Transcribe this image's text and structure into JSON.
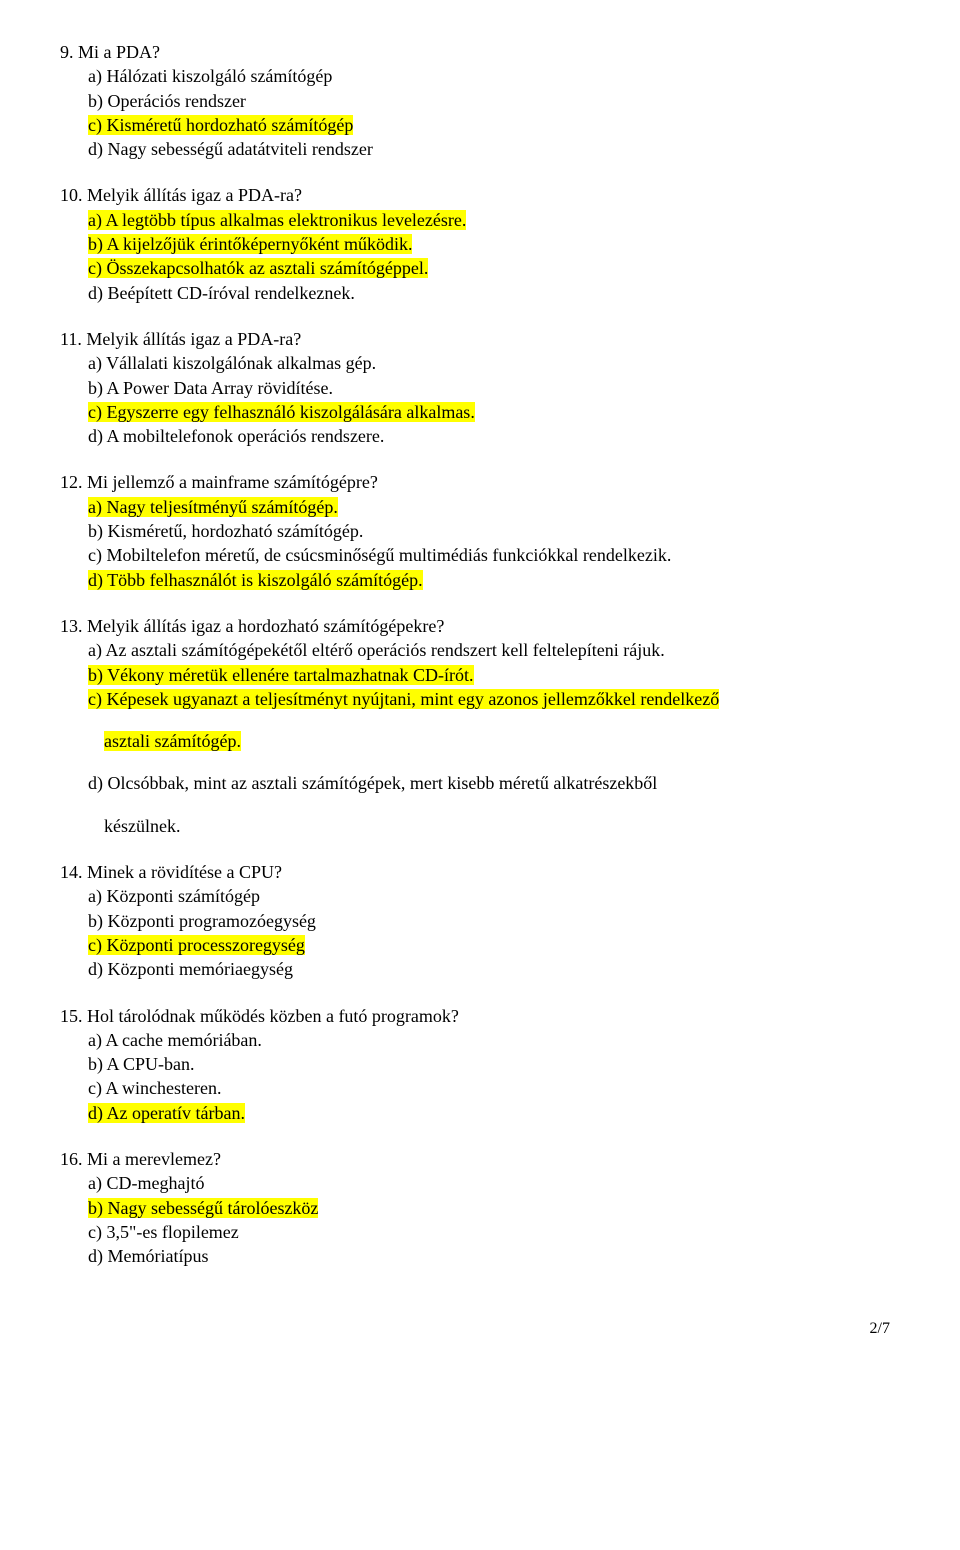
{
  "q9": {
    "stem": "9. Mi a PDA?",
    "a": "a) Hálózati kiszolgáló számítógép",
    "b": "b) Operációs rendszer",
    "c": "c) Kisméretű hordozható számítógép",
    "d": "d) Nagy sebességű adatátviteli rendszer"
  },
  "q10": {
    "stem": "10. Melyik állítás igaz a PDA-ra?",
    "a": "a) A legtöbb típus alkalmas elektronikus levelezésre.",
    "b": "b) A kijelzőjük érintőképernyőként működik.",
    "c": "c) Összekapcsolhatók az asztali számítógéppel.",
    "d": "d) Beépített CD-íróval rendelkeznek."
  },
  "q11": {
    "stem": "11. Melyik állítás igaz a PDA-ra?",
    "a": "a) Vállalati kiszolgálónak alkalmas gép.",
    "b": "b) A Power Data Array rövidítése.",
    "c": "c) Egyszerre egy felhasználó kiszolgálására alkalmas.",
    "d": "d) A mobiltelefonok operációs rendszere."
  },
  "q12": {
    "stem": "12. Mi jellemző a mainframe számítógépre?",
    "a": "a) Nagy teljesítményű számítógép.",
    "b": "b) Kisméretű, hordozható számítógép.",
    "c": "c) Mobiltelefon méretű, de csúcsminőségű multimédiás funkciókkal rendelkezik.",
    "d": "d) Több felhasználót is kiszolgáló számítógép."
  },
  "q13": {
    "stem": "13. Melyik állítás igaz a hordozható számítógépekre?",
    "a": "a) Az asztali számítógépekétől eltérő operációs rendszert kell feltelepíteni rájuk.",
    "b": "b) Vékony méretük ellenére tartalmazhatnak CD-írót.",
    "c1": "c) Képesek ugyanazt a teljesítményt nyújtani, mint egy azonos jellemzőkkel rendelkező",
    "c2": "asztali számítógép.",
    "d1": "d) Olcsóbbak, mint az asztali számítógépek, mert kisebb méretű alkatrészekből",
    "d2": "készülnek."
  },
  "q14": {
    "stem": "14. Minek a rövidítése a CPU?",
    "a": "a) Központi számítógép",
    "b": "b) Központi programozóegység",
    "c": "c) Központi processzoregység",
    "d": "d) Központi memóriaegység"
  },
  "q15": {
    "stem": "15. Hol tárolódnak működés közben a futó programok?",
    "a": "a) A cache memóriában.",
    "b": "b) A CPU-ban.",
    "c": "c) A winchesteren.",
    "d": "d) Az operatív tárban."
  },
  "q16": {
    "stem": "16. Mi a merevlemez?",
    "a": "a) CD-meghajtó",
    "b": "b) Nagy sebességű tárolóeszköz",
    "c": "c) 3,5\"-es flopilemez",
    "d": "d) Memóriatípus"
  },
  "pagenum": "2/7",
  "colors": {
    "highlight": "#ffff00",
    "text": "#000000",
    "background": "#ffffff"
  },
  "typography": {
    "font_family": "Times New Roman",
    "body_fontsize_pt": 13,
    "pagenum_fontsize_pt": 12
  }
}
